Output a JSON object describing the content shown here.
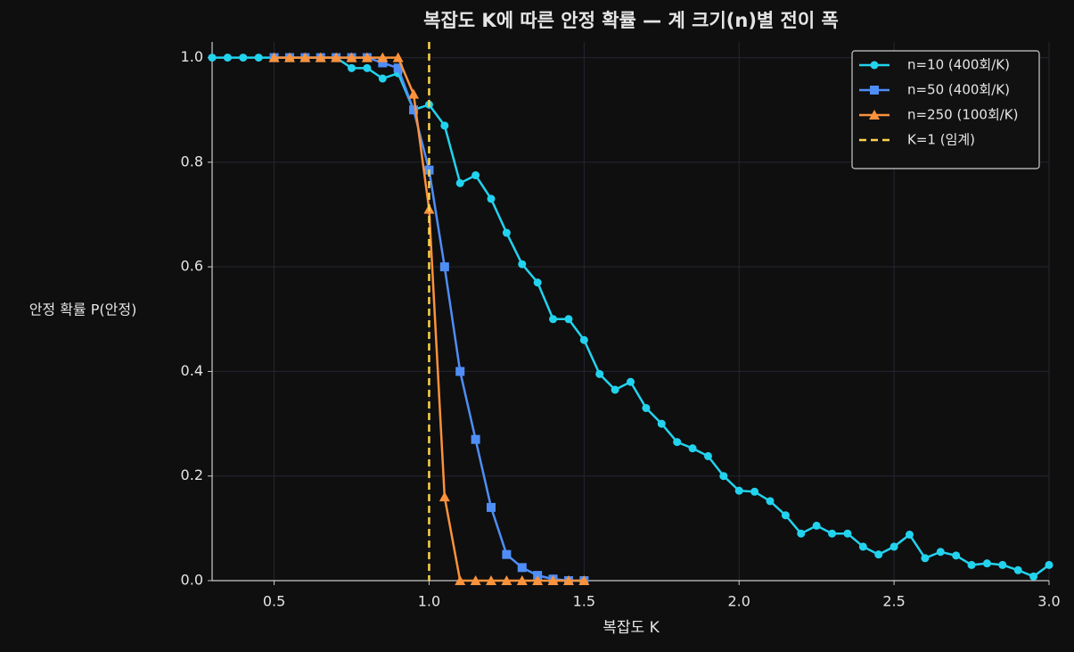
{
  "chart_data": {
    "type": "line",
    "title": "복잡도 K에 따른 안정 확률 — 계 크기(n)별 전이 폭",
    "xlabel": "복잡도 K",
    "ylabel": "안정 확률 P(안정)",
    "xlim": [
      0.3,
      3.0
    ],
    "ylim": [
      0,
      1.03
    ],
    "xticks": [
      0.5,
      {
        "value": 1,
        "label": "1.0"
      },
      1.5,
      {
        "value": 2,
        "label": "2.0"
      },
      2.5,
      {
        "value": 3,
        "label": "3.0"
      }
    ],
    "yticks": [
      {
        "value": 0,
        "label": "0.0"
      },
      0.2,
      0.4,
      0.6,
      0.8,
      {
        "value": 1,
        "label": "1.0"
      }
    ],
    "grid": true,
    "legend": "upper right",
    "series": [
      {
        "name": "n=10 (400회/K)",
        "color": "#22d3ee",
        "marker": "circle",
        "x": [
          0.3,
          0.35,
          0.4,
          0.45,
          0.5,
          0.55,
          0.6,
          0.65,
          0.7,
          0.75,
          0.8,
          0.85,
          0.9,
          0.95,
          1.0,
          1.05,
          1.1,
          1.15,
          1.2,
          1.25,
          1.3,
          1.35,
          1.4,
          1.45,
          1.5,
          1.55,
          1.6,
          1.65,
          1.7,
          1.75,
          1.8,
          1.85,
          1.9,
          1.95,
          2.0,
          2.05,
          2.1,
          2.15,
          2.2,
          2.25,
          2.3,
          2.35,
          2.4,
          2.45,
          2.5,
          2.55,
          2.6,
          2.65,
          2.7,
          2.75,
          2.8,
          2.85,
          2.9,
          2.95,
          3.0
        ],
        "values": [
          1,
          1,
          1,
          1,
          1,
          1,
          1,
          1,
          1,
          0.98,
          0.98,
          0.96,
          0.97,
          0.9,
          0.91,
          0.87,
          0.76,
          0.775,
          0.73,
          0.665,
          0.605,
          0.57,
          0.5,
          0.5,
          0.46,
          0.395,
          0.365,
          0.38,
          0.33,
          0.3,
          0.265,
          0.253,
          0.238,
          0.2,
          0.172,
          0.17,
          0.152,
          0.125,
          0.09,
          0.105,
          0.09,
          0.09,
          0.065,
          0.05,
          0.065,
          0.088,
          0.043,
          0.055,
          0.048,
          0.03,
          0.033,
          0.03,
          0.02,
          0.008,
          0.03
        ]
      },
      {
        "name": "n=50 (400회/K)",
        "color": "#4f8ef7",
        "marker": "square",
        "x": [
          0.5,
          0.55,
          0.6,
          0.65,
          0.7,
          0.75,
          0.8,
          0.85,
          0.9,
          0.95,
          1.0,
          1.05,
          1.1,
          1.15,
          1.2,
          1.25,
          1.3,
          1.35,
          1.4,
          1.45,
          1.5
        ],
        "values": [
          1,
          1,
          1,
          1,
          1,
          1,
          1,
          0.99,
          0.98,
          0.9,
          0.785,
          0.6,
          0.4,
          0.27,
          0.14,
          0.05,
          0.025,
          0.01,
          0.003,
          0,
          0
        ]
      },
      {
        "name": "n=250 (100회/K)",
        "color": "#fb923c",
        "marker": "triangle",
        "x": [
          0.5,
          0.55,
          0.6,
          0.65,
          0.7,
          0.75,
          0.8,
          0.85,
          0.9,
          0.95,
          1.0,
          1.05,
          1.1,
          1.15,
          1.2,
          1.25,
          1.3,
          1.35,
          1.4,
          1.45,
          1.5
        ],
        "values": [
          1,
          1,
          1,
          1,
          1,
          1,
          1,
          1,
          1,
          0.93,
          0.71,
          0.16,
          0,
          0,
          0,
          0,
          0,
          0,
          0,
          0,
          0
        ]
      }
    ],
    "vline": {
      "x": 1,
      "name": "K=1 (임계)",
      "color": "#fcd34d"
    }
  }
}
